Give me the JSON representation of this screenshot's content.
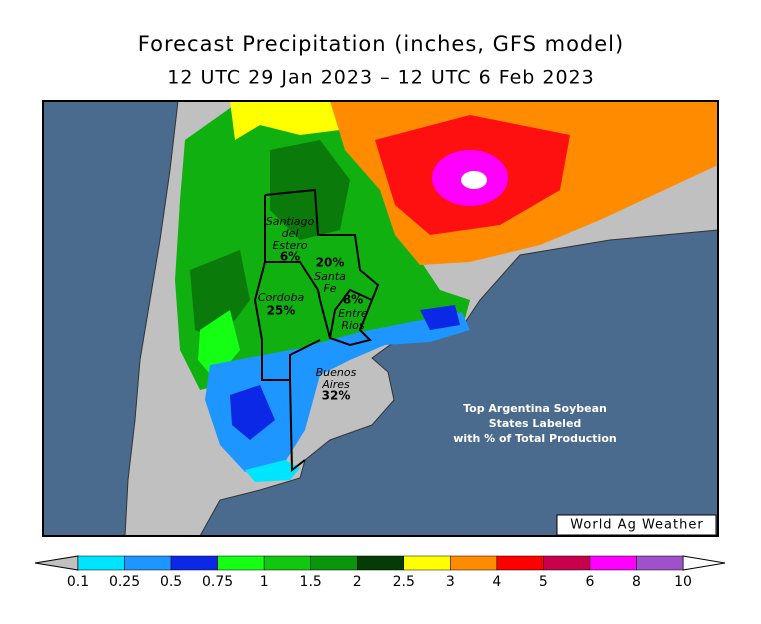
{
  "title": "Forecast Precipitation (inches, GFS model)",
  "subtitle": "12 UTC 29 Jan 2023 – 12 UTC 6 Feb 2023",
  "regions": [
    {
      "lines": [
        "Santiago",
        "del",
        "Estero"
      ],
      "share": "6%"
    },
    {
      "lines": [
        "Santa",
        "Fe"
      ],
      "share": "20%"
    },
    {
      "lines": [
        "Cordoba"
      ],
      "share": "25%"
    },
    {
      "lines": [
        "Entre",
        "Rios"
      ],
      "share": "8%"
    },
    {
      "lines": [
        "Buenos",
        "Aires"
      ],
      "share": "32%"
    }
  ],
  "annotation": [
    "Top Argentina Soybean",
    "States Labeled",
    "with % of Total Production"
  ],
  "credit": "World Ag Weather",
  "colorbar": {
    "ticks": [
      0.1,
      0.25,
      0.5,
      0.75,
      1,
      1.5,
      2,
      2.5,
      3,
      4,
      5,
      6,
      8,
      10
    ],
    "colors": [
      "#00e5ff",
      "#1e96ff",
      "#0a28e6",
      "#14ff14",
      "#10c810",
      "#0a960a",
      "#053c05",
      "#ffff00",
      "#ff8c00",
      "#ff0000",
      "#c8004b",
      "#ff00ff",
      "#a050c8"
    ],
    "under_color": "#c0c0c0",
    "over_color": "#ffffff"
  }
}
